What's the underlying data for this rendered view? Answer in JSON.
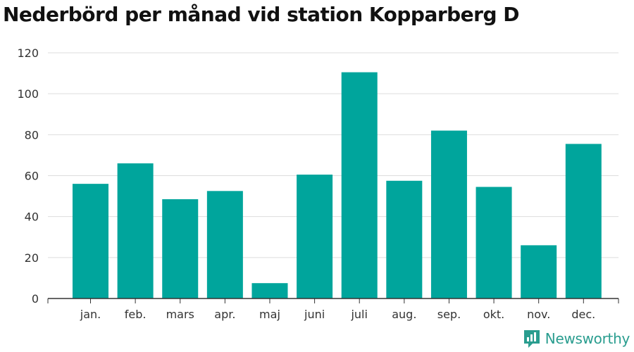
{
  "chart_data": {
    "type": "bar",
    "title": "Nederbörd per månad vid station Kopparberg D",
    "xlabel": "",
    "ylabel": "",
    "categories": [
      "jan.",
      "feb.",
      "mars",
      "apr.",
      "maj",
      "juni",
      "juli",
      "aug.",
      "sep.",
      "okt.",
      "nov.",
      "dec."
    ],
    "values": [
      56,
      66,
      48.5,
      52.5,
      7.5,
      60.5,
      110.5,
      57.5,
      82,
      54.5,
      26,
      75.5
    ],
    "ylim": [
      0,
      120
    ],
    "yticks": [
      "0",
      "20",
      "40",
      "60",
      "80",
      "100",
      "120"
    ],
    "grid": true,
    "bar_color": "#00a59c"
  },
  "branding": {
    "name": "Newsworthy",
    "text_color": "#2a9d8f"
  }
}
